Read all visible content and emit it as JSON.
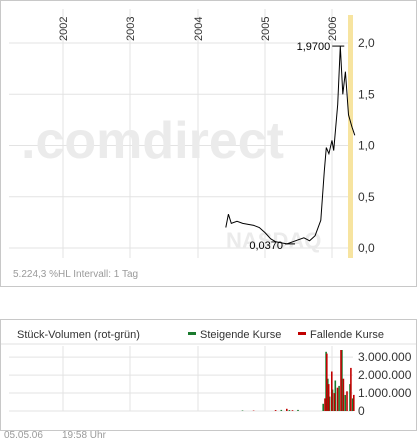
{
  "colors": {
    "price_line": "#000000",
    "grid": "#e3e3e3",
    "axis_text": "#333333",
    "current_marker": "#f7e4a0",
    "watermark": "#ebebeb",
    "watermark_accent": "#fbe6b8",
    "rising": "#1a7a2e",
    "falling": "#c00000",
    "footer_text": "#9a9a9a"
  },
  "watermark": {
    "brand": ".comdirect",
    "exchange": "NASDAQ"
  },
  "chart_data": [
    {
      "type": "line",
      "title": "",
      "xlabel": "",
      "ylabel": "",
      "x_ticks": [
        "2002",
        "2003",
        "2004",
        "2005",
        "2006"
      ],
      "y_ticks": [
        "0,0",
        "0,5",
        "1,0",
        "1,5",
        "2,0"
      ],
      "ylim": [
        0,
        2.0
      ],
      "grid": true,
      "annotations": {
        "high": "1,9700",
        "low": "0,0370"
      },
      "series": [
        {
          "points": [
            {
              "x": "2004-06-01",
              "y": 0.2
            },
            {
              "x": "2004-06-15",
              "y": 0.33
            },
            {
              "x": "2004-07-01",
              "y": 0.24
            },
            {
              "x": "2004-08-01",
              "y": 0.26
            },
            {
              "x": "2004-09-01",
              "y": 0.24
            },
            {
              "x": "2004-10-01",
              "y": 0.23
            },
            {
              "x": "2004-11-01",
              "y": 0.22
            },
            {
              "x": "2004-12-01",
              "y": 0.2
            },
            {
              "x": "2005-01-01",
              "y": 0.15
            },
            {
              "x": "2005-02-01",
              "y": 0.09
            },
            {
              "x": "2005-03-01",
              "y": 0.06
            },
            {
              "x": "2005-04-01",
              "y": 0.05
            },
            {
              "x": "2005-05-01",
              "y": 0.04
            },
            {
              "x": "2005-06-01",
              "y": 0.06
            },
            {
              "x": "2005-07-01",
              "y": 0.08
            },
            {
              "x": "2005-08-01",
              "y": 0.1
            },
            {
              "x": "2005-09-01",
              "y": 0.07
            },
            {
              "x": "2005-10-01",
              "y": 0.12
            },
            {
              "x": "2005-11-01",
              "y": 0.27
            },
            {
              "x": "2005-11-20",
              "y": 0.75
            },
            {
              "x": "2005-12-01",
              "y": 0.98
            },
            {
              "x": "2005-12-15",
              "y": 0.92
            },
            {
              "x": "2006-01-01",
              "y": 1.05
            },
            {
              "x": "2006-01-10",
              "y": 0.95
            },
            {
              "x": "2006-02-01",
              "y": 1.4
            },
            {
              "x": "2006-02-15",
              "y": 1.97
            },
            {
              "x": "2006-03-01",
              "y": 1.5
            },
            {
              "x": "2006-03-15",
              "y": 1.72
            },
            {
              "x": "2006-04-01",
              "y": 1.3
            },
            {
              "x": "2006-04-20",
              "y": 1.18
            },
            {
              "x": "2006-05-05",
              "y": 1.1
            }
          ]
        }
      ]
    },
    {
      "type": "bar",
      "title": "Stück-Volumen (rot-grün)",
      "y_ticks": [
        "0",
        "1.000.000",
        "2.000.000",
        "3.000.000"
      ],
      "ylim": [
        0,
        3400000
      ],
      "legend": [
        "Steigende Kurse",
        "Fallende Kurse"
      ],
      "legend_placement": "top-right",
      "series": [
        {
          "name": "Steigende Kurse",
          "values": [
            {
              "x": "2004-09-01",
              "y": 30000
            },
            {
              "x": "2005-04-01",
              "y": 60000
            },
            {
              "x": "2005-05-15",
              "y": 50000
            },
            {
              "x": "2005-07-01",
              "y": 60000
            },
            {
              "x": "2005-11-15",
              "y": 400000
            },
            {
              "x": "2005-12-01",
              "y": 3300000
            },
            {
              "x": "2005-12-10",
              "y": 1800000
            },
            {
              "x": "2005-12-20",
              "y": 800000
            },
            {
              "x": "2006-01-05",
              "y": 1200000
            },
            {
              "x": "2006-01-20",
              "y": 1700000
            },
            {
              "x": "2006-02-10",
              "y": 1400000
            },
            {
              "x": "2006-02-25",
              "y": 3400000
            },
            {
              "x": "2006-03-15",
              "y": 900000
            },
            {
              "x": "2006-04-10",
              "y": 1500000
            },
            {
              "x": "2006-04-25",
              "y": 700000
            }
          ]
        },
        {
          "name": "Fallende Kurse",
          "values": [
            {
              "x": "2004-11-01",
              "y": 25000
            },
            {
              "x": "2005-03-01",
              "y": 50000
            },
            {
              "x": "2005-05-01",
              "y": 120000
            },
            {
              "x": "2005-06-01",
              "y": 45000
            },
            {
              "x": "2005-11-25",
              "y": 700000
            },
            {
              "x": "2005-12-05",
              "y": 3200000
            },
            {
              "x": "2005-12-15",
              "y": 1500000
            },
            {
              "x": "2006-01-01",
              "y": 2200000
            },
            {
              "x": "2006-01-15",
              "y": 1000000
            },
            {
              "x": "2006-02-01",
              "y": 1300000
            },
            {
              "x": "2006-02-20",
              "y": 3400000
            },
            {
              "x": "2006-03-05",
              "y": 1800000
            },
            {
              "x": "2006-03-25",
              "y": 1100000
            },
            {
              "x": "2006-04-15",
              "y": 2400000
            },
            {
              "x": "2006-05-01",
              "y": 900000
            }
          ]
        }
      ]
    }
  ],
  "price_footer": "5.224,3 %HL   Intervall: 1 Tag",
  "bottom_footer": {
    "date": "05.05.06",
    "time": "19:58 Uhr"
  }
}
